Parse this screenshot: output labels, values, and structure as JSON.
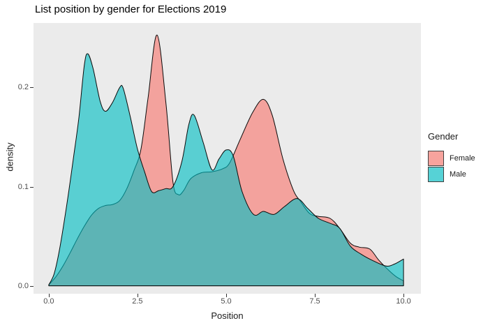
{
  "chart_data": {
    "type": "area",
    "title": "List position by gender for Elections 2019",
    "xlabel": "Position",
    "ylabel": "density",
    "xlim": [
      -0.43,
      10.49
    ],
    "ylim": [
      -0.008,
      0.265
    ],
    "x_tick_values": [
      0,
      2.5,
      5,
      7.5,
      10
    ],
    "x_tick_labels": [
      "0.0",
      "2.5",
      "5.0",
      "7.5",
      "10.0"
    ],
    "y_tick_values": [
      0,
      0.1,
      0.2
    ],
    "y_tick_labels": [
      "0.0",
      "0.1",
      "0.2"
    ],
    "grid": "off",
    "panel_bg": "#EBEBEB",
    "outline_color": "#0a0a0a",
    "legend": {
      "position": "right",
      "title": "Gender",
      "entries": [
        {
          "label": "Female",
          "color": "#F8766D"
        },
        {
          "label": "Male",
          "color": "#00BFC4"
        }
      ]
    },
    "series": [
      {
        "name": "Female",
        "color": "#F8766D",
        "fill_opacity": 0.62,
        "x": [
          0,
          0.2,
          0.4,
          0.6,
          0.8,
          1.0,
          1.2,
          1.4,
          1.6,
          1.8,
          2.0,
          2.2,
          2.4,
          2.6,
          2.8,
          3.05,
          3.3,
          3.5,
          3.65,
          3.8,
          4.0,
          4.3,
          4.6,
          4.9,
          5.1,
          5.4,
          5.75,
          6.05,
          6.3,
          6.6,
          6.9,
          7.1,
          7.35,
          7.6,
          7.93,
          8.2,
          8.5,
          8.75,
          9.05,
          9.3,
          9.6,
          9.8,
          10
        ],
        "density": [
          0.001,
          0.009,
          0.02,
          0.033,
          0.047,
          0.06,
          0.071,
          0.078,
          0.081,
          0.082,
          0.086,
          0.098,
          0.116,
          0.138,
          0.19,
          0.253,
          0.185,
          0.105,
          0.092,
          0.096,
          0.108,
          0.114,
          0.115,
          0.118,
          0.124,
          0.148,
          0.175,
          0.188,
          0.172,
          0.128,
          0.096,
          0.085,
          0.073,
          0.07,
          0.068,
          0.058,
          0.043,
          0.039,
          0.037,
          0.026,
          0.015,
          0.009,
          0.005
        ]
      },
      {
        "name": "Male",
        "color": "#00BFC4",
        "fill_opacity": 0.62,
        "x": [
          0,
          0.15,
          0.3,
          0.5,
          0.7,
          0.85,
          1.0,
          1.1,
          1.25,
          1.45,
          1.6,
          1.8,
          2.0,
          2.1,
          2.3,
          2.5,
          2.7,
          2.9,
          3.1,
          3.3,
          3.5,
          3.75,
          3.95,
          4.1,
          4.35,
          4.6,
          4.8,
          5.0,
          5.2,
          5.45,
          5.77,
          6.05,
          6.35,
          6.65,
          7.0,
          7.3,
          7.6,
          7.93,
          8.2,
          8.5,
          8.8,
          9.1,
          9.5,
          9.75,
          10
        ],
        "density": [
          0.001,
          0.012,
          0.036,
          0.08,
          0.13,
          0.17,
          0.222,
          0.234,
          0.219,
          0.186,
          0.176,
          0.185,
          0.2,
          0.199,
          0.17,
          0.138,
          0.115,
          0.095,
          0.096,
          0.098,
          0.1,
          0.125,
          0.163,
          0.172,
          0.145,
          0.117,
          0.128,
          0.137,
          0.131,
          0.095,
          0.072,
          0.075,
          0.072,
          0.08,
          0.088,
          0.078,
          0.068,
          0.063,
          0.058,
          0.04,
          0.032,
          0.026,
          0.02,
          0.022,
          0.027
        ]
      }
    ]
  }
}
